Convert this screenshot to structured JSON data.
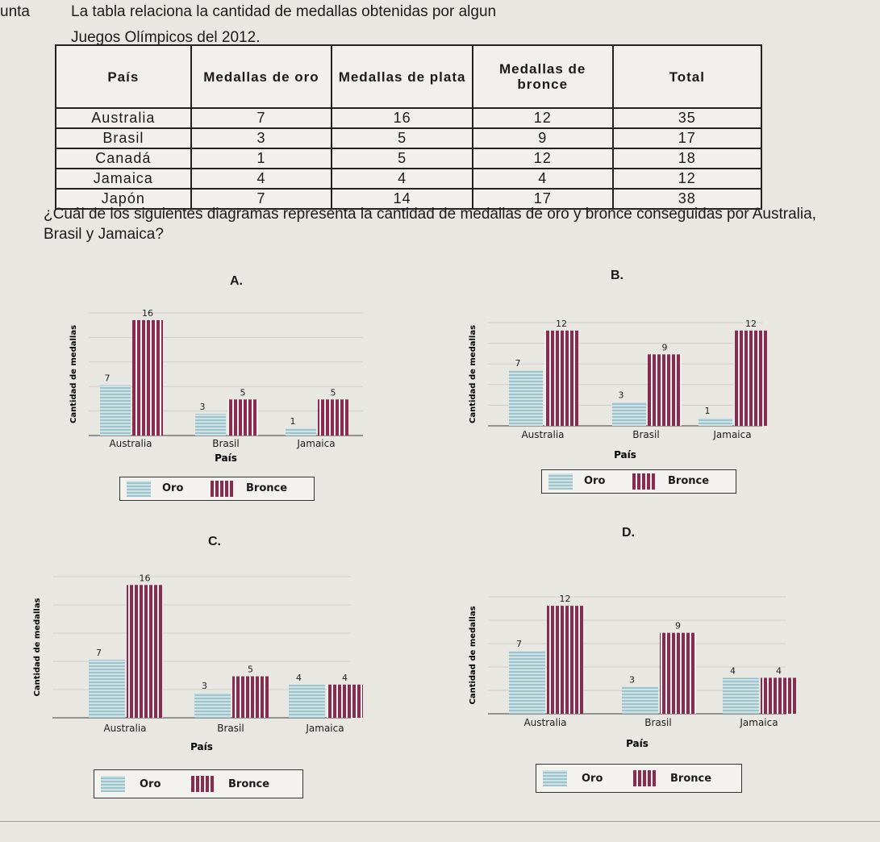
{
  "header": {
    "prefix": "unta",
    "intro": "La tabla relaciona la cantidad de medallas obtenidas por algun"
  },
  "subtitle": "Juegos Olímpicos del 2012.",
  "table": {
    "headers": [
      "País",
      "Medallas de oro",
      "Medallas de plata",
      "Medallas de bronce",
      "Total"
    ],
    "rows": [
      [
        "Australia",
        "7",
        "16",
        "12",
        "35"
      ],
      [
        "Brasil",
        "3",
        "5",
        "9",
        "17"
      ],
      [
        "Canadá",
        "1",
        "5",
        "12",
        "18"
      ],
      [
        "Jamaica",
        "4",
        "4",
        "4",
        "12"
      ],
      [
        "Japón",
        "7",
        "14",
        "17",
        "38"
      ]
    ]
  },
  "question": "¿Cuál de los siguientes diagramas representa la cantidad de medallas de oro y bronce conseguidas por Australia, Brasil y Jamaica?",
  "options": [
    {
      "label": "A."
    },
    {
      "label": "B."
    },
    {
      "label": "C."
    },
    {
      "label": "D."
    }
  ],
  "legend": {
    "oro": "Oro",
    "bronce": "Bronce"
  },
  "colors": {
    "oro": "#9cc4ca",
    "oro_light": "#cfe3e6",
    "bronce": "#8a2a4e"
  },
  "chart_data": [
    {
      "type": "bar",
      "option": "A.",
      "categories": [
        "Australia",
        "Brasil",
        "Jamaica"
      ],
      "series": [
        {
          "name": "Oro",
          "values": [
            7,
            3,
            1
          ]
        },
        {
          "name": "Bronce",
          "values": [
            16,
            5,
            5
          ]
        }
      ],
      "xlabel": "País",
      "ylabel": "Cantidad de medallas",
      "ylim": [
        0,
        17
      ]
    },
    {
      "type": "bar",
      "option": "B.",
      "categories": [
        "Australia",
        "Brasil",
        "Jamaica"
      ],
      "series": [
        {
          "name": "Oro",
          "values": [
            7,
            3,
            1
          ]
        },
        {
          "name": "Bronce",
          "values": [
            12,
            9,
            12
          ]
        }
      ],
      "xlabel": "País",
      "ylabel": "Cantidad de medallas",
      "ylim": [
        0,
        13
      ]
    },
    {
      "type": "bar",
      "option": "C.",
      "categories": [
        "Australia",
        "Brasil",
        "Jamaica"
      ],
      "series": [
        {
          "name": "Oro",
          "values": [
            7,
            3,
            4
          ]
        },
        {
          "name": "Bronce",
          "values": [
            16,
            5,
            4
          ]
        }
      ],
      "xlabel": "País",
      "ylabel": "Cantidad de medallas",
      "ylim": [
        0,
        17
      ]
    },
    {
      "type": "bar",
      "option": "D.",
      "categories": [
        "Australia",
        "Brasil",
        "Jamaica"
      ],
      "series": [
        {
          "name": "Oro",
          "values": [
            7,
            3,
            4
          ]
        },
        {
          "name": "Bronce",
          "values": [
            12,
            9,
            4
          ]
        }
      ],
      "xlabel": "País",
      "ylabel": "Cantidad de medallas",
      "ylim": [
        0,
        13
      ]
    }
  ]
}
